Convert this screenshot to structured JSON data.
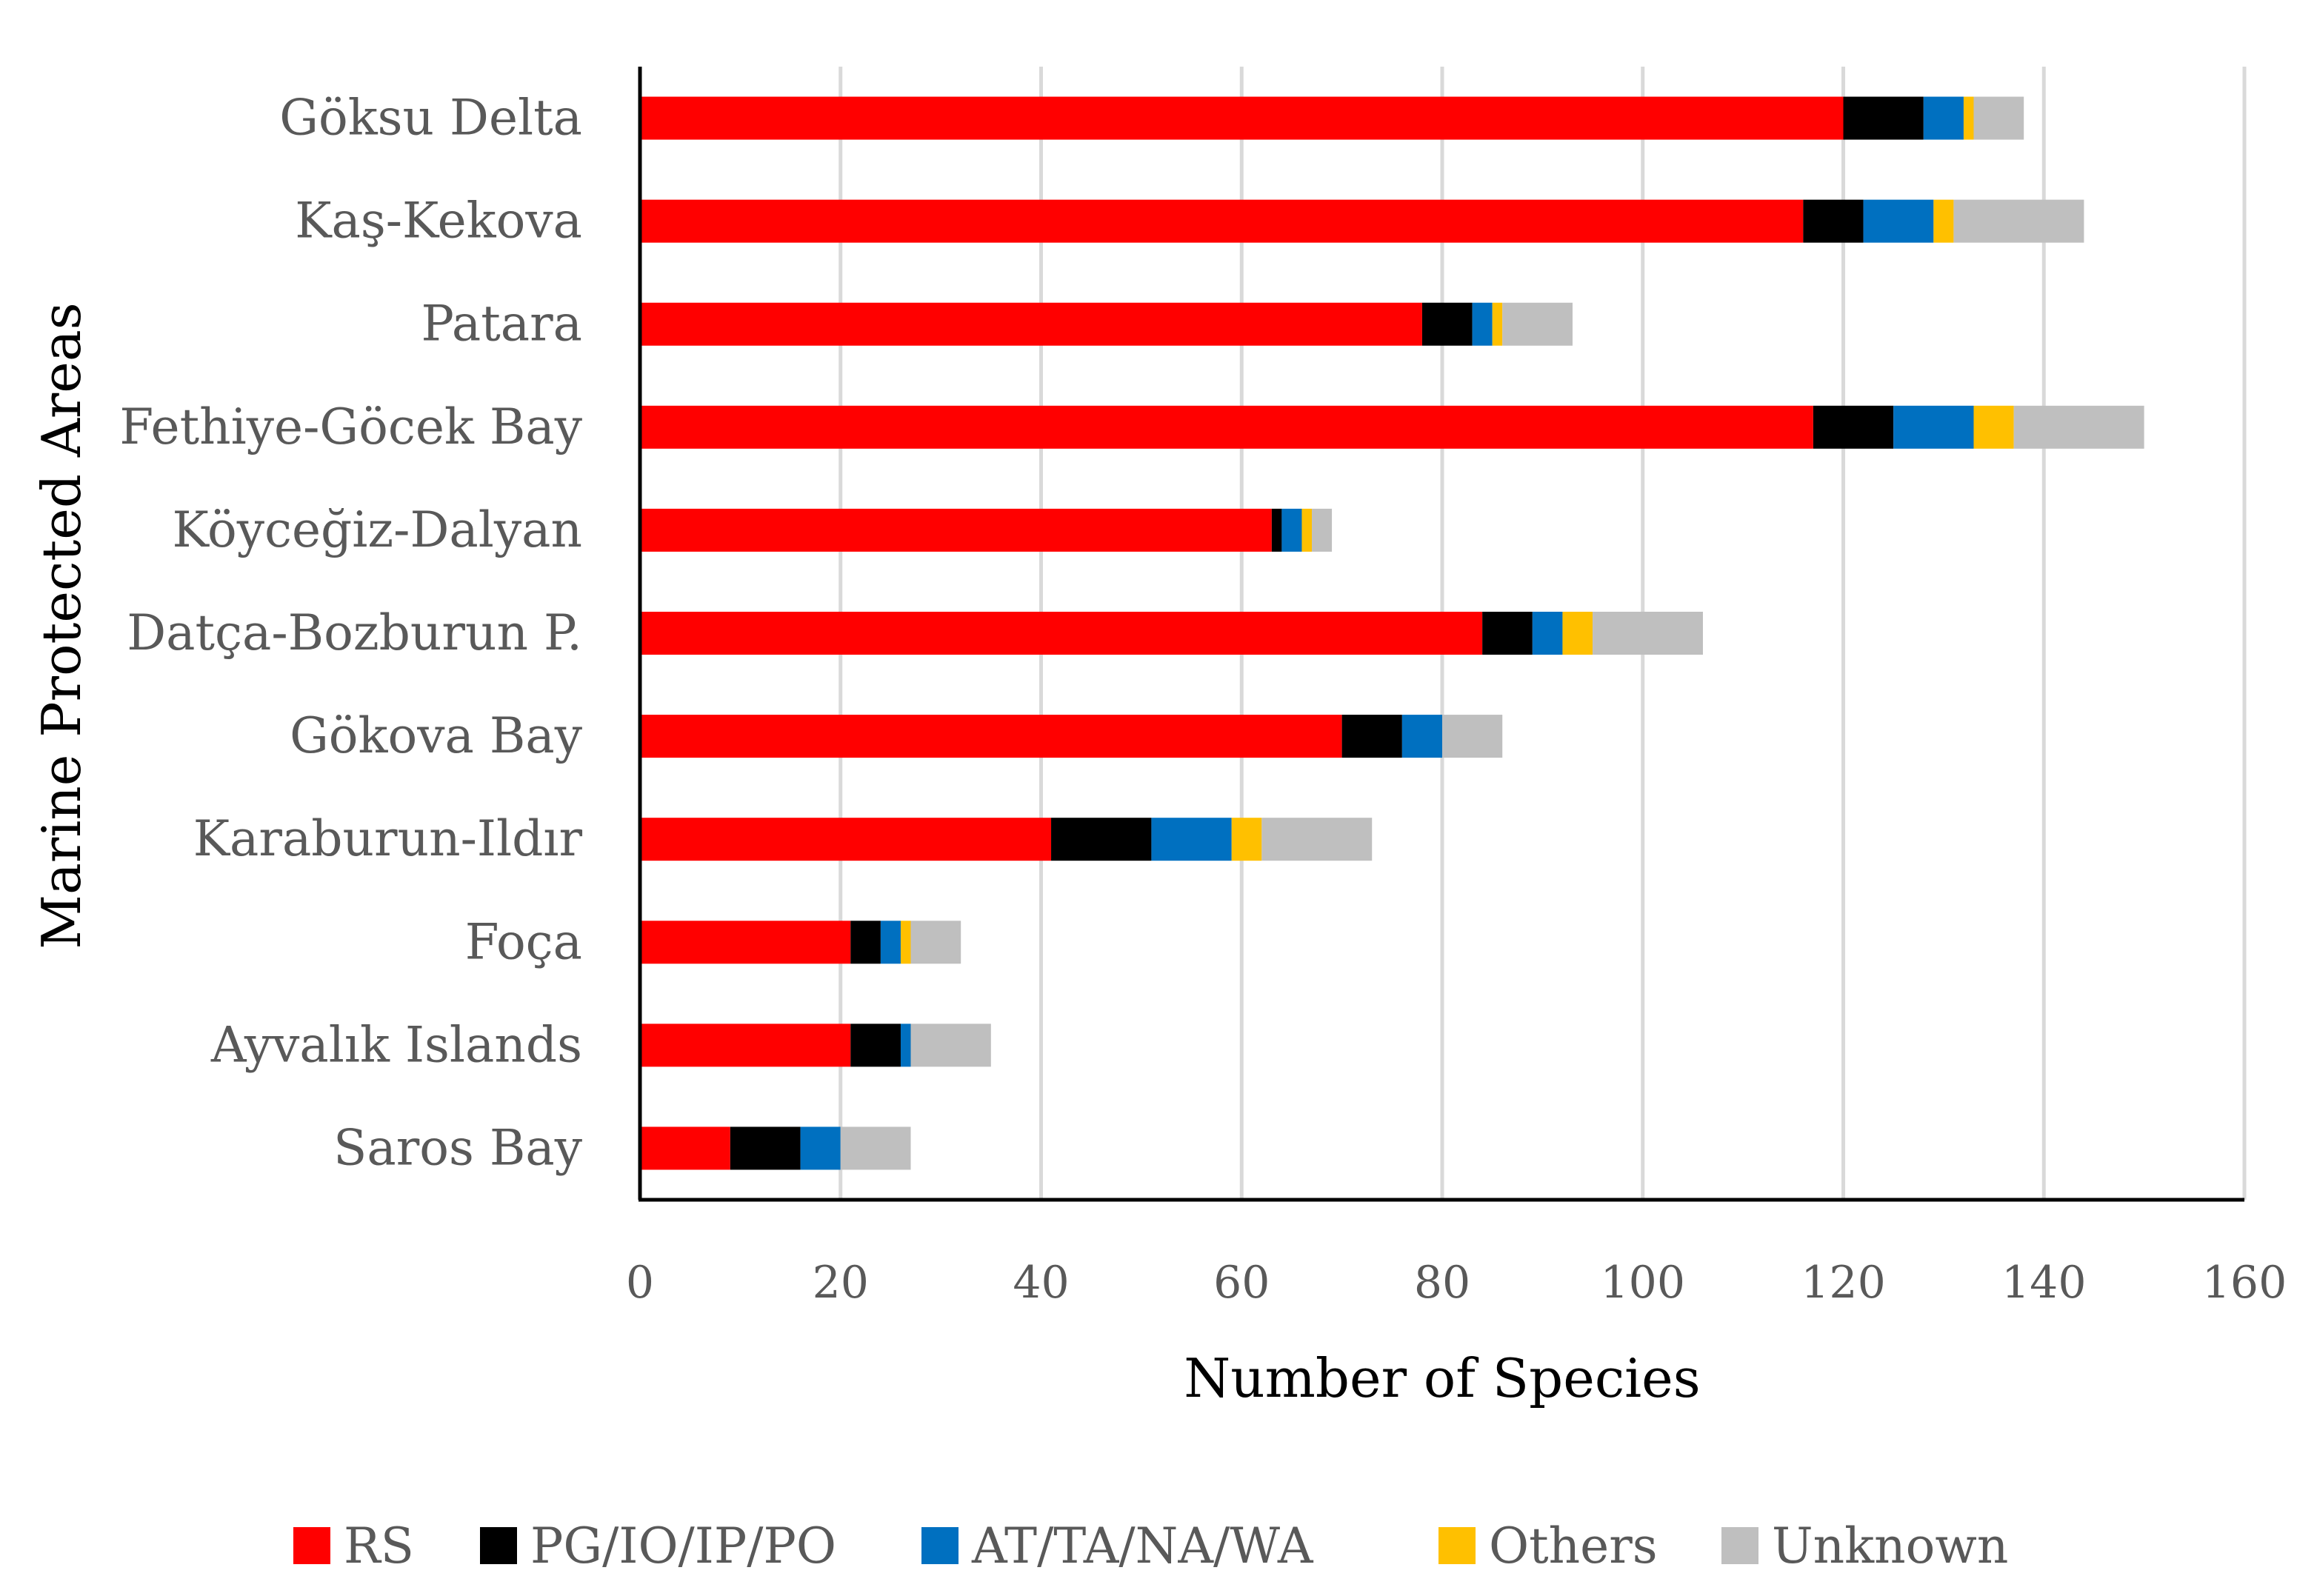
{
  "chart_data": {
    "type": "bar",
    "orientation": "horizontal",
    "stacked": true,
    "title": "",
    "xlabel": "Number of Species",
    "ylabel": "Marine Protected Areas",
    "xlim": [
      0,
      160
    ],
    "xticks": [
      "0",
      "20",
      "40",
      "60",
      "80",
      "100",
      "120",
      "140",
      "160"
    ],
    "grid": true,
    "legend_position": "bottom",
    "categories": [
      "Göksu Delta",
      "Kaş-Kekova",
      "Patara",
      "Fethiye-Göcek Bay",
      "Köyceğiz-Dalyan",
      "Datça-Bozburun P.",
      "Gökova Bay",
      "Karaburun-Ildır",
      "Foça",
      "Ayvalık Islands",
      "Saros Bay"
    ],
    "series": [
      {
        "name": "RS",
        "color": "#ff0000",
        "values": [
          120,
          116,
          78,
          117,
          63,
          84,
          70,
          41,
          21,
          21,
          9
        ]
      },
      {
        "name": "PG/IO/IP/PO",
        "color": "#000000",
        "values": [
          8,
          6,
          5,
          8,
          1,
          5,
          6,
          10,
          3,
          5,
          7
        ]
      },
      {
        "name": "AT/TA/NA/WA",
        "color": "#0070c0",
        "values": [
          4,
          7,
          2,
          8,
          2,
          3,
          4,
          8,
          2,
          1,
          4
        ]
      },
      {
        "name": "Others",
        "color": "#ffc000",
        "values": [
          1,
          2,
          1,
          4,
          1,
          3,
          0,
          3,
          1,
          0,
          0
        ]
      },
      {
        "name": "Unknown",
        "color": "#bfbfbf",
        "values": [
          5,
          13,
          7,
          13,
          2,
          11,
          6,
          11,
          5,
          8,
          7
        ]
      }
    ]
  }
}
